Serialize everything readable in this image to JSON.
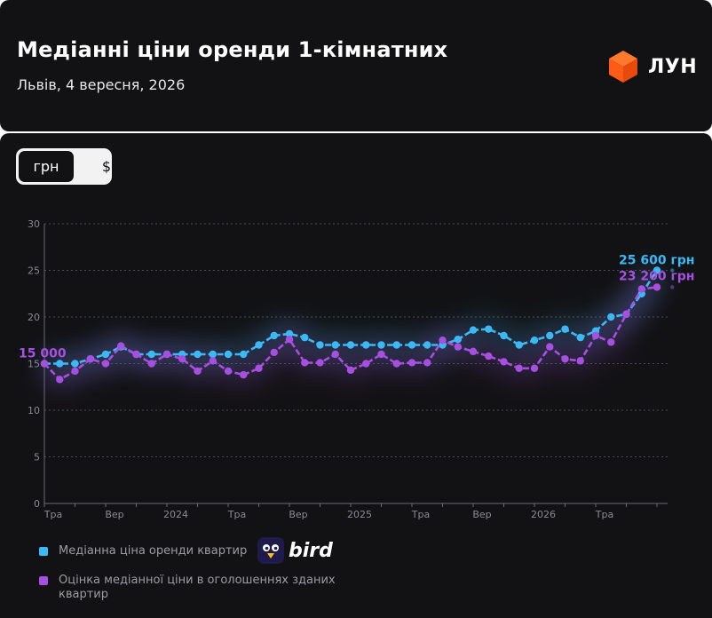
{
  "header": {
    "title": "Медіанні ціни оренди 1-кімнатних",
    "subtitle": "Львів, 4 вересня, 2026",
    "brand": "ЛУН"
  },
  "currency_toggle": {
    "options": [
      "грн",
      "$"
    ],
    "selected": "грн"
  },
  "legend": [
    {
      "label": "Медіанна ціна оренди квартир",
      "color": "#3cb8f5"
    },
    {
      "label": "Оцінка медіанної ціни в оголошеннях зданих квартир",
      "color": "#a64fe0"
    }
  ],
  "source_logo": "bird",
  "chart_data": {
    "type": "line",
    "ylim": [
      0,
      30
    ],
    "y_ticks": [
      "0",
      "5",
      "10",
      "15",
      "20",
      "25",
      "30"
    ],
    "x_tick_labels": [
      {
        "index": 0,
        "label": "Тра"
      },
      {
        "index": 4,
        "label": "Вер"
      },
      {
        "index": 8,
        "label": "2024"
      },
      {
        "index": 12,
        "label": "Тра"
      },
      {
        "index": 16,
        "label": "Вер"
      },
      {
        "index": 20,
        "label": "2025"
      },
      {
        "index": 24,
        "label": "Тра"
      },
      {
        "index": 28,
        "label": "Вер"
      },
      {
        "index": 32,
        "label": "2026"
      },
      {
        "index": 36,
        "label": "Тра"
      }
    ],
    "series": [
      {
        "color": "#3cb8f5",
        "values": [
          15.0,
          15.0,
          15.0,
          15.5,
          16.0,
          16.8,
          16.0,
          16.0,
          16.0,
          16.0,
          16.0,
          16.0,
          16.0,
          16.0,
          17.0,
          18.0,
          18.2,
          17.8,
          17.0,
          17.0,
          17.0,
          17.0,
          17.0,
          17.0,
          17.0,
          17.0,
          17.0,
          17.6,
          18.6,
          18.7,
          18.0,
          17.0,
          17.5,
          18.0,
          18.7,
          17.8,
          18.5,
          20.0,
          20.3,
          22.5,
          25.0,
          25.6
        ],
        "end_label": "25 600 грн"
      },
      {
        "color": "#a64fe0",
        "values": [
          15.0,
          13.3,
          14.2,
          15.5,
          15.0,
          16.9,
          16.0,
          15.0,
          16.0,
          15.5,
          14.2,
          15.3,
          14.2,
          13.8,
          14.5,
          16.2,
          17.6,
          15.1,
          15.1,
          16.0,
          14.3,
          15.0,
          16.0,
          15.0,
          15.1,
          15.1,
          17.5,
          16.8,
          16.3,
          15.8,
          15.2,
          14.5,
          14.5,
          16.8,
          15.5,
          15.3,
          18.0,
          17.3,
          20.3,
          23.0,
          23.2
        ],
        "start_label": "15 000",
        "end_label": "23 200 грн"
      }
    ]
  }
}
